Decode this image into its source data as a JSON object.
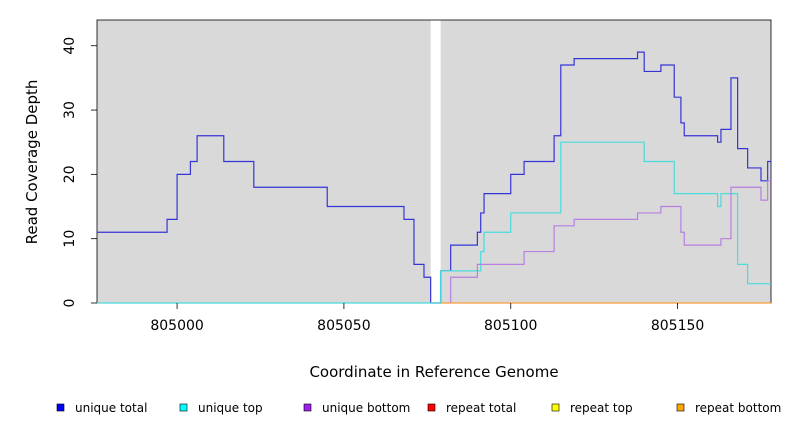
{
  "chart_data": {
    "type": "line",
    "xlabel": "Coordinate in Reference Genome",
    "ylabel": "Read Coverage Depth",
    "xlim": [
      804976,
      805178
    ],
    "ylim": [
      0,
      44
    ],
    "x_ticks": [
      805000,
      805050,
      805100,
      805150
    ],
    "y_ticks": [
      0,
      10,
      20,
      30,
      40
    ],
    "shaded_regions": [
      [
        804976,
        805076
      ],
      [
        805079,
        805178
      ]
    ],
    "shade_color": "#d9d9d9",
    "legend_position": "bottom",
    "series": [
      {
        "name": "unique total",
        "color": "#0000ff",
        "line_color": "#3535d6",
        "points": [
          [
            804976,
            11
          ],
          [
            804997,
            11
          ],
          [
            804997,
            13
          ],
          [
            805000,
            13
          ],
          [
            805000,
            20
          ],
          [
            805004,
            20
          ],
          [
            805004,
            22
          ],
          [
            805006,
            22
          ],
          [
            805006,
            26
          ],
          [
            805014,
            26
          ],
          [
            805014,
            22
          ],
          [
            805023,
            22
          ],
          [
            805023,
            18
          ],
          [
            805045,
            18
          ],
          [
            805045,
            15
          ],
          [
            805068,
            15
          ],
          [
            805068,
            13
          ],
          [
            805071,
            13
          ],
          [
            805071,
            6
          ],
          [
            805074,
            6
          ],
          [
            805074,
            4
          ],
          [
            805076,
            4
          ],
          [
            805076,
            0
          ],
          [
            805079,
            0
          ],
          [
            805079,
            5
          ],
          [
            805082,
            5
          ],
          [
            805082,
            9
          ],
          [
            805090,
            9
          ],
          [
            805090,
            11
          ],
          [
            805091,
            11
          ],
          [
            805091,
            14
          ],
          [
            805092,
            14
          ],
          [
            805092,
            17
          ],
          [
            805100,
            17
          ],
          [
            805100,
            20
          ],
          [
            805104,
            20
          ],
          [
            805104,
            22
          ],
          [
            805113,
            22
          ],
          [
            805113,
            26
          ],
          [
            805115,
            26
          ],
          [
            805115,
            37
          ],
          [
            805119,
            37
          ],
          [
            805119,
            38
          ],
          [
            805138,
            38
          ],
          [
            805138,
            39
          ],
          [
            805140,
            39
          ],
          [
            805140,
            36
          ],
          [
            805145,
            36
          ],
          [
            805145,
            37
          ],
          [
            805149,
            37
          ],
          [
            805149,
            32
          ],
          [
            805151,
            32
          ],
          [
            805151,
            28
          ],
          [
            805152,
            28
          ],
          [
            805152,
            26
          ],
          [
            805162,
            26
          ],
          [
            805162,
            25
          ],
          [
            805163,
            25
          ],
          [
            805163,
            27
          ],
          [
            805166,
            27
          ],
          [
            805166,
            35
          ],
          [
            805168,
            35
          ],
          [
            805168,
            24
          ],
          [
            805171,
            24
          ],
          [
            805171,
            21
          ],
          [
            805175,
            21
          ],
          [
            805175,
            19
          ],
          [
            805177,
            19
          ],
          [
            805177,
            22
          ],
          [
            805178,
            22
          ]
        ]
      },
      {
        "name": "unique top",
        "color": "#00ffff",
        "line_color": "#48dcdc",
        "points": [
          [
            804976,
            0
          ],
          [
            805079,
            0
          ],
          [
            805079,
            5
          ],
          [
            805091,
            5
          ],
          [
            805091,
            8
          ],
          [
            805092,
            8
          ],
          [
            805092,
            11
          ],
          [
            805100,
            11
          ],
          [
            805100,
            14
          ],
          [
            805115,
            14
          ],
          [
            805115,
            25
          ],
          [
            805140,
            25
          ],
          [
            805140,
            22
          ],
          [
            805149,
            22
          ],
          [
            805149,
            17
          ],
          [
            805162,
            17
          ],
          [
            805162,
            15
          ],
          [
            805163,
            15
          ],
          [
            805163,
            17
          ],
          [
            805168,
            17
          ],
          [
            805168,
            6
          ],
          [
            805171,
            6
          ],
          [
            805171,
            3
          ],
          [
            805178,
            3
          ]
        ]
      },
      {
        "name": "unique bottom",
        "color": "#a020f0",
        "line_color": "#b77fe0",
        "points": [
          [
            805082,
            0
          ],
          [
            805082,
            4
          ],
          [
            805090,
            4
          ],
          [
            805090,
            6
          ],
          [
            805104,
            6
          ],
          [
            805104,
            8
          ],
          [
            805113,
            8
          ],
          [
            805113,
            12
          ],
          [
            805119,
            12
          ],
          [
            805119,
            13
          ],
          [
            805138,
            13
          ],
          [
            805138,
            14
          ],
          [
            805145,
            14
          ],
          [
            805145,
            15
          ],
          [
            805151,
            15
          ],
          [
            805151,
            11
          ],
          [
            805152,
            11
          ],
          [
            805152,
            9
          ],
          [
            805163,
            9
          ],
          [
            805163,
            10
          ],
          [
            805166,
            10
          ],
          [
            805166,
            18
          ],
          [
            805175,
            18
          ],
          [
            805175,
            16
          ],
          [
            805177,
            16
          ],
          [
            805177,
            19
          ],
          [
            805178,
            19
          ]
        ]
      },
      {
        "name": "repeat total",
        "color": "#ff0000",
        "line_color": "#ff0000",
        "points": []
      },
      {
        "name": "repeat top",
        "color": "#ffff00",
        "line_color": "#ffff00",
        "points": []
      },
      {
        "name": "repeat bottom",
        "color": "#ffa500",
        "line_color": "#ff9a3a",
        "points": [
          [
            805079,
            0
          ],
          [
            805178,
            0
          ]
        ]
      }
    ]
  }
}
